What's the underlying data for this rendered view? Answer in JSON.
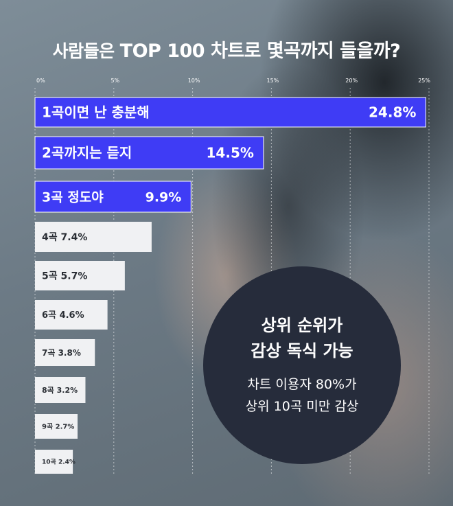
{
  "title": {
    "part1": "사람들은",
    "part2": "TOP 100 차트로 몇곡까지 들을까?"
  },
  "chart_data": {
    "type": "bar",
    "orientation": "horizontal",
    "xlim": [
      0,
      25
    ],
    "ticks": [
      "0%",
      "5%",
      "10%",
      "15%",
      "20%",
      "25%"
    ],
    "tick_values": [
      0,
      5,
      10,
      15,
      20,
      25
    ],
    "grid": true,
    "categories": [
      "1곡이면 난 충분해",
      "2곡까지는 듣지",
      "3곡 정도야",
      "4곡",
      "5곡",
      "6곡",
      "7곡",
      "8곡",
      "9곡",
      "10곡"
    ],
    "values": [
      24.8,
      14.5,
      9.9,
      7.4,
      5.7,
      4.6,
      3.8,
      3.2,
      2.7,
      2.4
    ],
    "value_labels": [
      "24.8%",
      "14.5%",
      "9.9%",
      "7.4%",
      "5.7%",
      "4.6%",
      "3.8%",
      "3.2%",
      "2.7%",
      "2.4%"
    ],
    "highlight_color": "#3f3cf5",
    "normal_color": "#f0f1f3"
  },
  "callout": {
    "headline": [
      "상위 순위가",
      "감상 독식 가능"
    ],
    "detail": [
      "차트 이용자 80%가",
      "상위 10곡 미만 감상"
    ],
    "background": "#262c3b"
  }
}
